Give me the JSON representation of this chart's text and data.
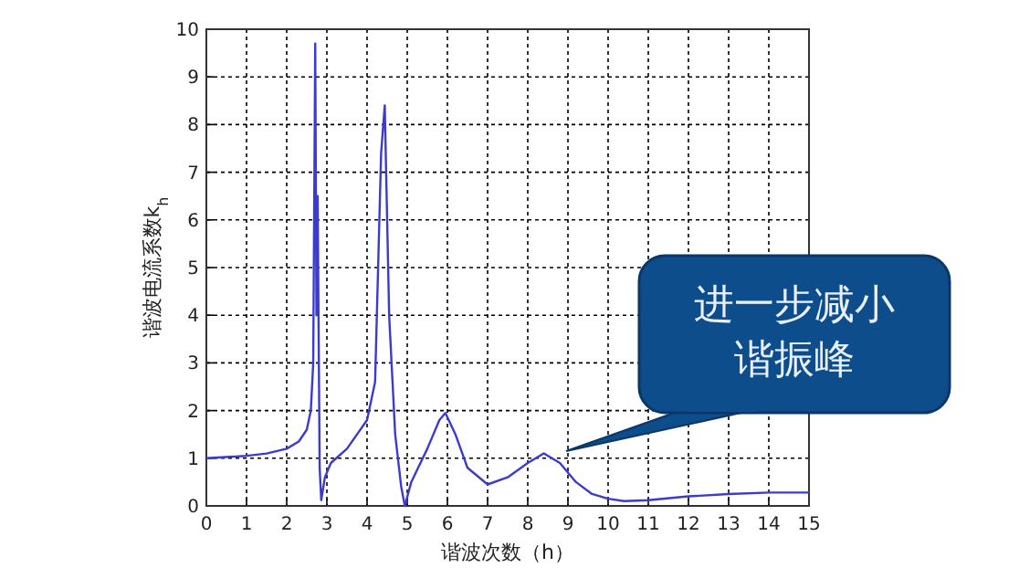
{
  "chart_data": {
    "type": "line",
    "xlabel": "谐波次数（h）",
    "ylabel": "谐波电流系数k$_{h}$",
    "x": [
      0,
      1,
      1.5,
      2,
      2.3,
      2.5,
      2.6,
      2.66,
      2.71,
      2.74,
      2.77,
      2.82,
      2.86,
      2.95,
      3.1,
      3.5,
      4.0,
      4.2,
      4.35,
      4.44,
      4.55,
      4.7,
      4.85,
      4.94,
      5.1,
      5.5,
      5.8,
      5.95,
      6.2,
      6.5,
      7.0,
      7.5,
      8.0,
      8.4,
      8.8,
      9.2,
      9.6,
      10,
      10.4,
      11,
      12,
      13,
      14,
      15
    ],
    "series": [
      {
        "color": "#3b3bcf",
        "values": [
          1.0,
          1.05,
          1.1,
          1.2,
          1.35,
          1.6,
          2.0,
          3.0,
          9.7,
          4.0,
          6.5,
          0.8,
          0.12,
          0.6,
          0.9,
          1.2,
          1.8,
          2.6,
          7.4,
          8.4,
          4.0,
          1.5,
          0.4,
          0.0,
          0.5,
          1.2,
          1.8,
          1.95,
          1.5,
          0.8,
          0.45,
          0.6,
          0.9,
          1.1,
          0.9,
          0.5,
          0.25,
          0.15,
          0.1,
          0.12,
          0.2,
          0.25,
          0.28,
          0.28
        ]
      }
    ],
    "xlim": [
      0,
      15
    ],
    "ylim": [
      0,
      10
    ],
    "xticks": [
      0,
      1,
      2,
      3,
      4,
      5,
      6,
      7,
      8,
      9,
      10,
      11,
      12,
      13,
      14,
      15
    ],
    "yticks": [
      0,
      1,
      2,
      3,
      4,
      5,
      6,
      7,
      8,
      9,
      10
    ],
    "grid": true,
    "marker": "none",
    "line_style": "solid",
    "annotations": [
      "进一步减小谐振峰"
    ]
  }
}
